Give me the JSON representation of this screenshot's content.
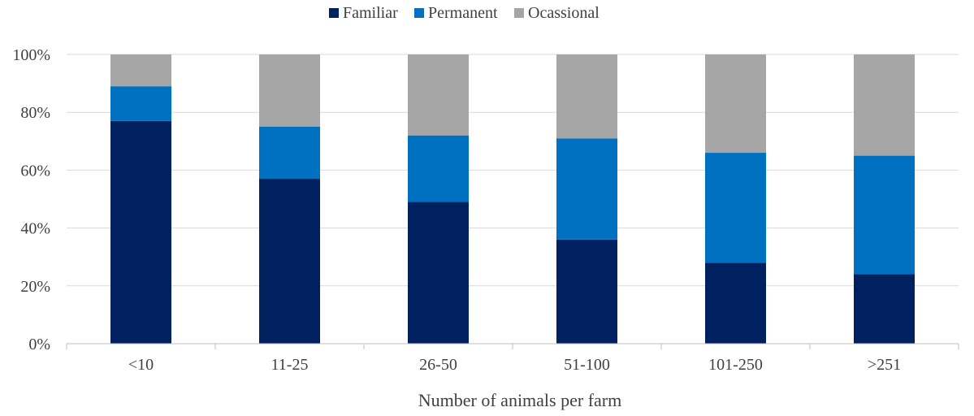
{
  "chart_data": {
    "type": "bar",
    "stacked": true,
    "categories": [
      "<10",
      "11-25",
      "26-50",
      "51-100",
      "101-250",
      ">251"
    ],
    "series": [
      {
        "name": "Familiar",
        "color": "#002060",
        "values": [
          77,
          57,
          49,
          36,
          28,
          24
        ]
      },
      {
        "name": "Permanent",
        "color": "#0070C0",
        "values": [
          12,
          18,
          23,
          35,
          38,
          41
        ]
      },
      {
        "name": "Ocassional",
        "color": "#A6A6A6",
        "values": [
          11,
          25,
          28,
          29,
          34,
          35
        ]
      }
    ],
    "xlabel": "Number of animals per farm",
    "ylabel": "",
    "ylim": [
      0,
      100
    ],
    "yticks": [
      "0%",
      "20%",
      "40%",
      "60%",
      "80%",
      "100%"
    ],
    "grid": true,
    "legend_position": "top-center"
  }
}
